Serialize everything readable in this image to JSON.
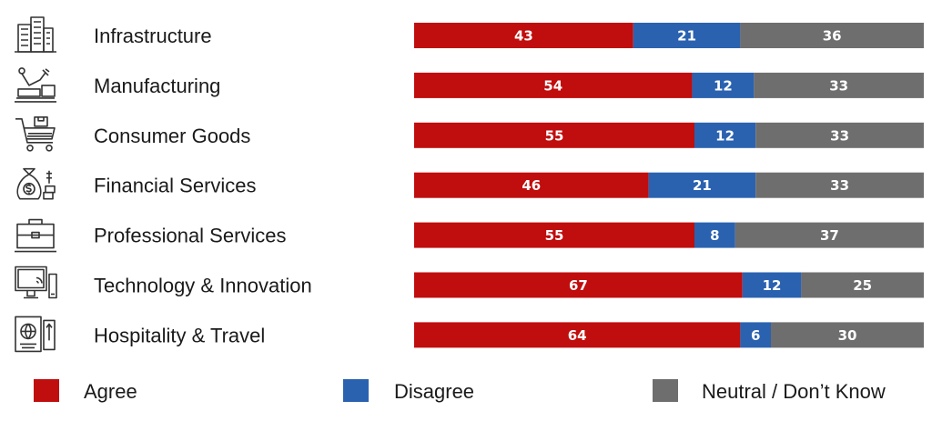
{
  "chart_data": {
    "type": "bar",
    "orientation": "horizontal",
    "stacked": true,
    "percent": true,
    "categories": [
      "Infrastructure",
      "Manufacturing",
      "Consumer Goods",
      "Financial Services",
      "Professional Services",
      "Technology & Innovation",
      "Hospitality & Travel"
    ],
    "icons": [
      "buildings-icon",
      "robot-arm-icon",
      "shopping-cart-icon",
      "money-bag-icon",
      "briefcase-icon",
      "computer-monitor-icon",
      "passport-icon"
    ],
    "series": [
      {
        "name": "Agree",
        "color": "#C00D0D",
        "values": [
          43,
          54,
          55,
          46,
          55,
          67,
          64
        ]
      },
      {
        "name": "Disagree",
        "color": "#2A62B0",
        "values": [
          21,
          12,
          12,
          21,
          8,
          12,
          6
        ]
      },
      {
        "name": "Neutral / Don’t Know",
        "color": "#6E6E6E",
        "values": [
          36,
          33,
          33,
          33,
          37,
          25,
          30
        ]
      }
    ],
    "data_labels": true,
    "legend": "bottom",
    "grid": false,
    "xlim": [
      0,
      100
    ]
  }
}
